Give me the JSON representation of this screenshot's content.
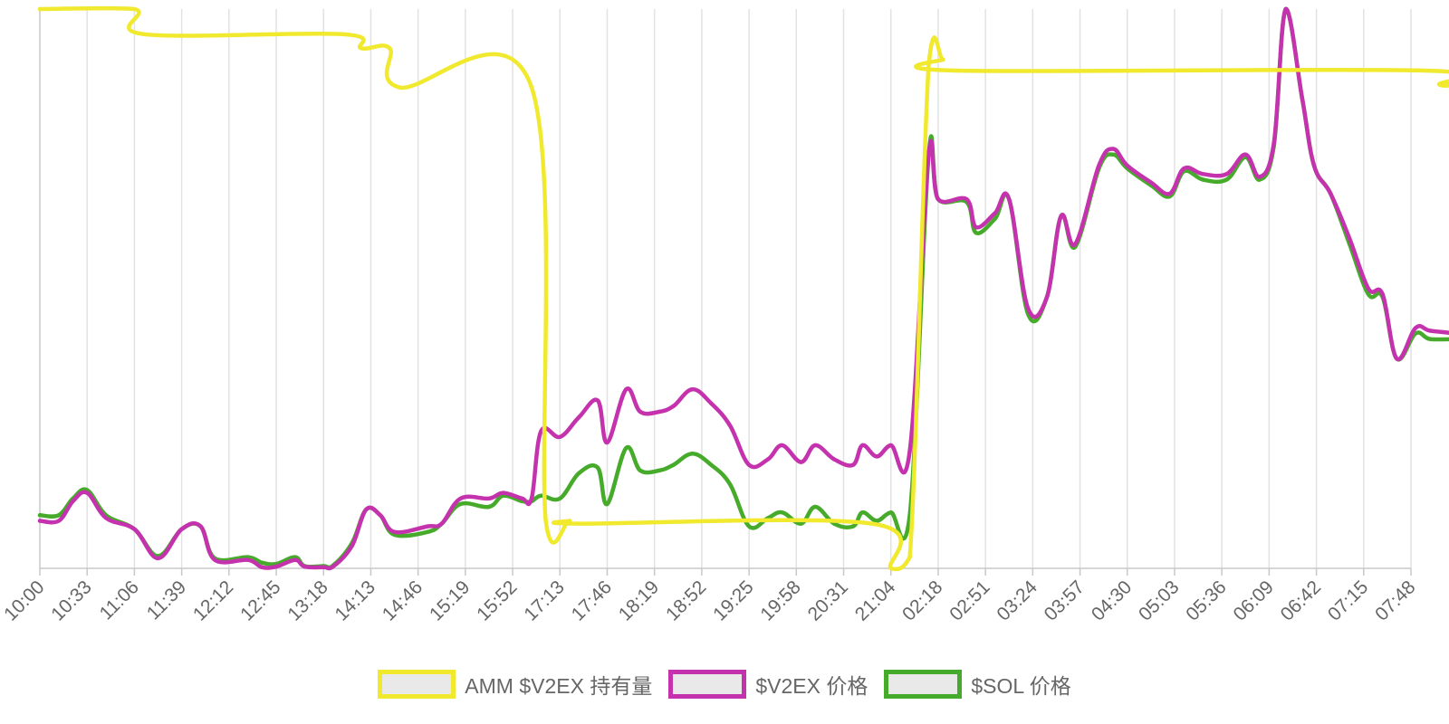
{
  "chart_data": {
    "type": "line",
    "grid": true,
    "legend_position": "bottom",
    "x_tick_labels": [
      "10:00",
      "10:33",
      "11:06",
      "11:39",
      "12:12",
      "12:45",
      "13:18",
      "14:13",
      "14:46",
      "15:19",
      "15:52",
      "17:13",
      "17:46",
      "18:19",
      "18:52",
      "19:25",
      "19:58",
      "20:31",
      "21:04",
      "02:18",
      "02:51",
      "03:24",
      "03:57",
      "04:30",
      "05:03",
      "05:36",
      "06:09",
      "06:42",
      "07:15",
      "07:48"
    ],
    "y_range": [
      0,
      100
    ],
    "y_axis_labels_shown": false,
    "series": [
      {
        "name": "AMM $V2EX 持有量",
        "color": "#f0e92e",
        "values": [
          [
            0,
            100
          ],
          [
            2,
            100
          ],
          [
            2.2,
            95.5
          ],
          [
            6.4,
            95.5
          ],
          [
            6.8,
            93
          ],
          [
            7.4,
            93
          ],
          [
            7.6,
            86
          ],
          [
            10.4,
            86
          ],
          [
            10.7,
            8.5
          ],
          [
            11.2,
            8.5
          ],
          [
            11.4,
            8
          ],
          [
            17.6,
            8
          ],
          [
            18,
            0
          ],
          [
            18.4,
            2
          ],
          [
            18.8,
            90
          ],
          [
            19.1,
            91
          ],
          [
            19.4,
            89
          ],
          [
            29.3,
            89
          ],
          [
            29.6,
            86.5
          ],
          [
            29.95,
            86.5
          ]
        ]
      },
      {
        "name": "$V2EX 价格",
        "color": "#c433ad",
        "values": [
          [
            0,
            8.5
          ],
          [
            0.4,
            8.5
          ],
          [
            0.7,
            12
          ],
          [
            1,
            13.5
          ],
          [
            1.4,
            9
          ],
          [
            2,
            7
          ],
          [
            2.5,
            1.8
          ],
          [
            3,
            7
          ],
          [
            3.4,
            7.5
          ],
          [
            3.7,
            1.5
          ],
          [
            4.4,
            1.5
          ],
          [
            4.7,
            0.2
          ],
          [
            5,
            0.3
          ],
          [
            5.4,
            1.5
          ],
          [
            5.6,
            0.3
          ],
          [
            6,
            0.2
          ],
          [
            6.2,
            0.3
          ],
          [
            6.6,
            4
          ],
          [
            6.9,
            10.5
          ],
          [
            7.2,
            9.5
          ],
          [
            7.5,
            6.5
          ],
          [
            8.2,
            7.5
          ],
          [
            8.5,
            8
          ],
          [
            8.9,
            12.5
          ],
          [
            9.5,
            12.5
          ],
          [
            9.8,
            13.5
          ],
          [
            10.2,
            12.5
          ],
          [
            10.4,
            12.5
          ],
          [
            10.6,
            24.5
          ],
          [
            11,
            23.5
          ],
          [
            11.4,
            27
          ],
          [
            11.8,
            30
          ],
          [
            12,
            22.5
          ],
          [
            12.4,
            32
          ],
          [
            12.7,
            28
          ],
          [
            13.1,
            28
          ],
          [
            13.4,
            29
          ],
          [
            13.8,
            32
          ],
          [
            14.2,
            29.5
          ],
          [
            14.6,
            25.5
          ],
          [
            15,
            18.5
          ],
          [
            15.4,
            19.5
          ],
          [
            15.7,
            22
          ],
          [
            16.1,
            19
          ],
          [
            16.4,
            22
          ],
          [
            16.8,
            19.5
          ],
          [
            17.2,
            18.5
          ],
          [
            17.4,
            22
          ],
          [
            17.7,
            20
          ],
          [
            18,
            22
          ],
          [
            18.4,
            21
          ],
          [
            18.8,
            74
          ],
          [
            19,
            66
          ],
          [
            19.6,
            66
          ],
          [
            19.8,
            61
          ],
          [
            20.2,
            63.5
          ],
          [
            20.5,
            66
          ],
          [
            20.9,
            46.5
          ],
          [
            21.3,
            48.5
          ],
          [
            21.6,
            63
          ],
          [
            21.9,
            58
          ],
          [
            22.4,
            72
          ],
          [
            22.7,
            75
          ],
          [
            23,
            72
          ],
          [
            23.5,
            69
          ],
          [
            23.9,
            67
          ],
          [
            24.2,
            71.5
          ],
          [
            24.6,
            70.5
          ],
          [
            25.1,
            70.5
          ],
          [
            25.5,
            74
          ],
          [
            25.8,
            70
          ],
          [
            26.1,
            76
          ],
          [
            26.35,
            100
          ],
          [
            26.7,
            84
          ],
          [
            26.95,
            72
          ],
          [
            27.3,
            67
          ],
          [
            27.7,
            59
          ],
          [
            28.1,
            50
          ],
          [
            28.4,
            49
          ],
          [
            28.7,
            37.5
          ],
          [
            29.1,
            43
          ],
          [
            29.4,
            42.5
          ],
          [
            29.95,
            42
          ]
        ]
      },
      {
        "name": "$SOL 价格",
        "color": "#46ab2a",
        "values": [
          [
            0,
            9.5
          ],
          [
            0.4,
            9.5
          ],
          [
            0.7,
            12.5
          ],
          [
            1,
            14
          ],
          [
            1.4,
            9.5
          ],
          [
            2,
            7
          ],
          [
            2.5,
            2.2
          ],
          [
            3,
            7
          ],
          [
            3.4,
            7.5
          ],
          [
            3.7,
            1.8
          ],
          [
            4.4,
            2
          ],
          [
            4.7,
            1
          ],
          [
            5,
            0.8
          ],
          [
            5.4,
            2
          ],
          [
            5.6,
            0.4
          ],
          [
            6,
            0.4
          ],
          [
            6.2,
            0.5
          ],
          [
            6.6,
            4.5
          ],
          [
            6.9,
            10.5
          ],
          [
            7.2,
            9.5
          ],
          [
            7.5,
            6
          ],
          [
            8.2,
            6.5
          ],
          [
            8.5,
            8
          ],
          [
            8.9,
            11.5
          ],
          [
            9.5,
            11
          ],
          [
            9.8,
            13
          ],
          [
            10.2,
            12
          ],
          [
            10.4,
            12
          ],
          [
            10.6,
            13
          ],
          [
            11,
            12.5
          ],
          [
            11.4,
            17
          ],
          [
            11.8,
            18
          ],
          [
            12,
            11.5
          ],
          [
            12.4,
            21.5
          ],
          [
            12.7,
            17.5
          ],
          [
            13.1,
            17.5
          ],
          [
            13.4,
            18.5
          ],
          [
            13.8,
            20.5
          ],
          [
            14.2,
            18.5
          ],
          [
            14.6,
            15
          ],
          [
            15,
            7.5
          ],
          [
            15.4,
            9
          ],
          [
            15.7,
            10
          ],
          [
            16.1,
            8
          ],
          [
            16.4,
            11
          ],
          [
            16.8,
            8
          ],
          [
            17.2,
            7.5
          ],
          [
            17.4,
            10
          ],
          [
            17.7,
            8.5
          ],
          [
            18,
            10
          ],
          [
            18.4,
            9.5
          ],
          [
            18.8,
            74
          ],
          [
            19,
            66
          ],
          [
            19.6,
            65.5
          ],
          [
            19.8,
            60
          ],
          [
            20.2,
            62.5
          ],
          [
            20.5,
            66
          ],
          [
            20.9,
            45.5
          ],
          [
            21.3,
            48.5
          ],
          [
            21.6,
            63
          ],
          [
            21.9,
            57.5
          ],
          [
            22.4,
            71.5
          ],
          [
            22.7,
            74
          ],
          [
            23,
            71.5
          ],
          [
            23.5,
            68.5
          ],
          [
            23.9,
            66.5
          ],
          [
            24.2,
            71
          ],
          [
            24.6,
            69.5
          ],
          [
            25.1,
            69.5
          ],
          [
            25.5,
            73.5
          ],
          [
            25.8,
            69.5
          ],
          [
            26.1,
            75.5
          ],
          [
            26.35,
            100
          ],
          [
            26.7,
            84
          ],
          [
            26.95,
            72
          ],
          [
            27.3,
            67
          ],
          [
            27.7,
            58
          ],
          [
            28.1,
            49
          ],
          [
            28.4,
            48.5
          ],
          [
            28.7,
            37.5
          ],
          [
            29.1,
            42
          ],
          [
            29.4,
            41
          ],
          [
            29.95,
            41
          ]
        ]
      }
    ]
  },
  "colors": {
    "grid": "#e2e2e2",
    "axis": "#c8c8c8",
    "tick_text": "#666666",
    "legend_fill": "#e9e9e9"
  }
}
